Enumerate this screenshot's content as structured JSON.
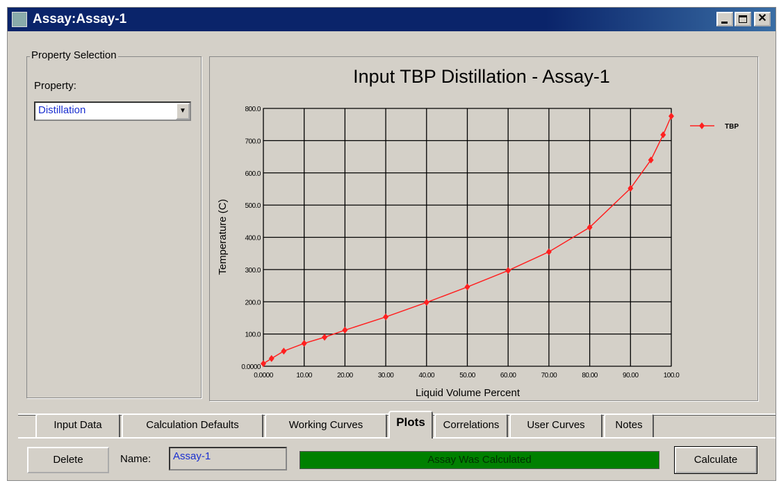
{
  "window": {
    "title": "Assay:Assay-1"
  },
  "property_selection": {
    "legend": "Property Selection",
    "label": "Property:",
    "value": "Distillation"
  },
  "chart_data": {
    "type": "line",
    "title": "Input TBP Distillation - Assay-1",
    "x_label": "Liquid Volume Percent",
    "y_label": "Temperature (C)",
    "x": [
      0,
      2,
      5,
      10,
      15,
      20,
      30,
      40,
      50,
      60,
      70,
      80,
      90,
      95,
      98,
      100
    ],
    "series": [
      {
        "name": "TBP",
        "color": "#ff2020",
        "values": [
          8,
          24,
          47,
          71,
          90,
          112,
          153,
          198,
          246,
          297,
          355,
          431,
          552,
          640,
          718,
          776
        ]
      }
    ],
    "xlim": [
      0,
      100
    ],
    "ylim": [
      0,
      800
    ],
    "xticks": [
      {
        "value": 0,
        "label": "0.0000"
      },
      {
        "value": 10,
        "label": "10.00"
      },
      {
        "value": 20,
        "label": "20.00"
      },
      {
        "value": 30,
        "label": "30.00"
      },
      {
        "value": 40,
        "label": "40.00"
      },
      {
        "value": 50,
        "label": "50.00"
      },
      {
        "value": 60,
        "label": "60.00"
      },
      {
        "value": 70,
        "label": "70.00"
      },
      {
        "value": 80,
        "label": "80.00"
      },
      {
        "value": 90,
        "label": "90.00"
      },
      {
        "value": 100,
        "label": "100.0"
      }
    ],
    "yticks": [
      {
        "value": 0,
        "label": "0.0000"
      },
      {
        "value": 100,
        "label": "100.0"
      },
      {
        "value": 200,
        "label": "200.0"
      },
      {
        "value": 300,
        "label": "300.0"
      },
      {
        "value": 400,
        "label": "400.0"
      },
      {
        "value": 500,
        "label": "500.0"
      },
      {
        "value": 600,
        "label": "600.0"
      },
      {
        "value": 700,
        "label": "700.0"
      },
      {
        "value": 800,
        "label": "800.0"
      }
    ],
    "grid": true,
    "legend": "right"
  },
  "tabs": [
    "Input Data",
    "Calculation Defaults",
    "Working Curves",
    "Plots",
    "Correlations",
    "User Curves",
    "Notes"
  ],
  "active_tab": 3,
  "footer": {
    "delete": "Delete",
    "name_label": "Name:",
    "name_value": "Assay-1",
    "status": "Assay Was Calculated",
    "calculate": "Calculate"
  }
}
